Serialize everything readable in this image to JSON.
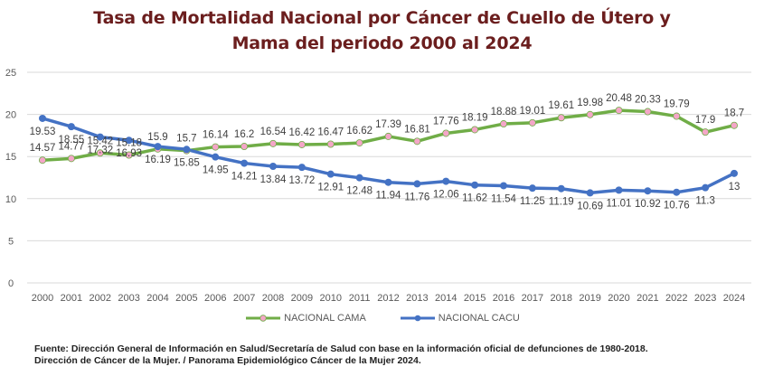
{
  "chart_data": {
    "type": "line",
    "title_line1": "Tasa de Mortalidad Nacional por Cáncer de Cuello de Útero y",
    "title_line2": "Mama del periodo 2000 al 2024",
    "xlabel": "",
    "ylabel": "",
    "ylim": [
      0,
      25
    ],
    "yticks": [
      0,
      5,
      10,
      15,
      20,
      25
    ],
    "grid": true,
    "legend_position": "bottom",
    "categories": [
      "2000",
      "2001",
      "2002",
      "2003",
      "2004",
      "2005",
      "2006",
      "2007",
      "2008",
      "2009",
      "2010",
      "2011",
      "2012",
      "2013",
      "2014",
      "2015",
      "2016",
      "2017",
      "2018",
      "2019",
      "2020",
      "2021",
      "2022",
      "2023",
      "2024"
    ],
    "series": [
      {
        "name": "NACIONAL CAMA",
        "color": "#70ad47",
        "marker_color": "#f4a6c8",
        "label_position": "above",
        "values": [
          14.57,
          14.77,
          15.42,
          15.18,
          15.9,
          15.7,
          16.14,
          16.2,
          16.54,
          16.42,
          16.47,
          16.62,
          17.39,
          16.81,
          17.76,
          18.19,
          18.88,
          19.01,
          19.61,
          19.98,
          20.48,
          20.33,
          19.79,
          17.9,
          18.7
        ]
      },
      {
        "name": "NACIONAL CACU",
        "color": "#4472c4",
        "marker_color": "#4472c4",
        "label_position": "below",
        "values": [
          19.53,
          18.55,
          17.32,
          16.93,
          16.19,
          15.85,
          14.95,
          14.21,
          13.84,
          13.72,
          12.91,
          12.48,
          11.94,
          11.76,
          12.06,
          11.62,
          11.54,
          11.25,
          11.19,
          10.69,
          11.01,
          10.92,
          10.76,
          11.3,
          13
        ]
      }
    ]
  },
  "footer": {
    "line1": "Fuente: Dirección General de Información en Salud/Secretaría de Salud con base en la información oficial de defunciones de 1980-2018.",
    "line2": "Dirección de Cáncer de la Mujer.  / Panorama Epidemiológico Cáncer de la Mujer 2024."
  }
}
